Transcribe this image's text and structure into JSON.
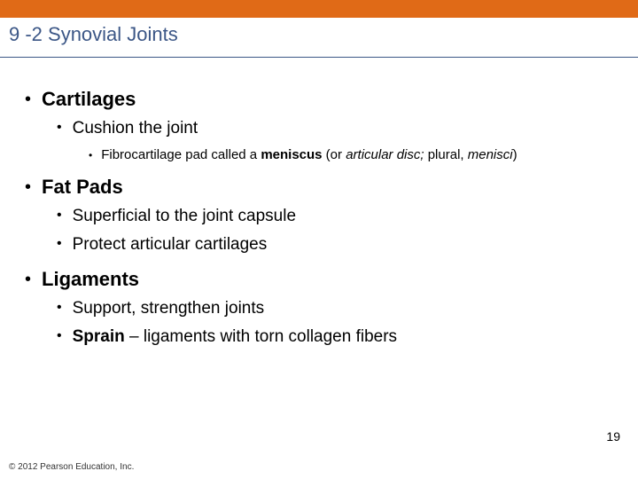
{
  "colors": {
    "accent": "#e06a17",
    "title_text": "#3b5686",
    "body_text": "#000000",
    "divider": "#3b5686",
    "copyright": "#333333"
  },
  "slide": {
    "title": "9 -2 Synovial Joints",
    "page_number": "19",
    "copyright": "© 2012 Pearson Education, Inc."
  },
  "bullets": {
    "cartilages": {
      "label": "Cartilages",
      "sub1": "Cushion the joint",
      "sub1_sub_prefix": "Fibrocartilage pad called a ",
      "sub1_sub_bold": "meniscus",
      "sub1_sub_mid": " (or ",
      "sub1_sub_italic1": "articular disc;",
      "sub1_sub_mid2": " plural, ",
      "sub1_sub_italic2": "menisci",
      "sub1_sub_tail": ")"
    },
    "fatpads": {
      "label": "Fat Pads",
      "sub1": "Superficial to the joint capsule",
      "sub2": "Protect articular cartilages"
    },
    "ligaments": {
      "label": "Ligaments",
      "sub1": "Support, strengthen joints",
      "sub2_bold": "Sprain",
      "sub2_rest": " – ligaments with torn collagen fibers"
    }
  }
}
